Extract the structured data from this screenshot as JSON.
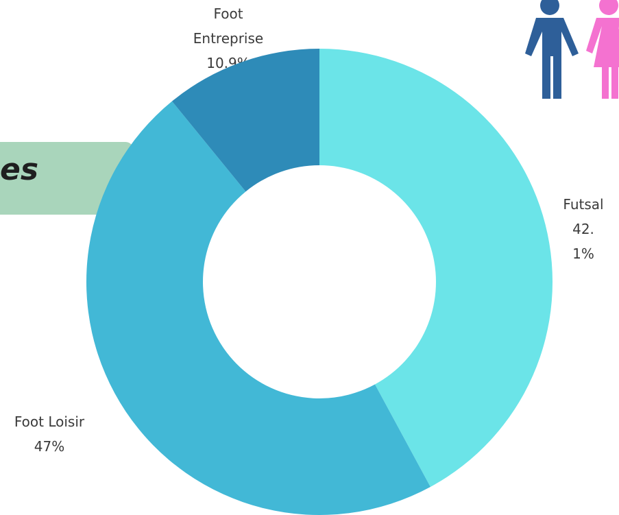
{
  "banner": {
    "text": "es"
  },
  "chart_data": {
    "type": "donut",
    "categories": [
      "Futsal",
      "Foot Loisir",
      "Foot Entreprise"
    ],
    "values": [
      42.1,
      47,
      10.9
    ],
    "value_labels": [
      "42.1%",
      "47%",
      "10.9%"
    ],
    "colors": [
      "#6be4e8",
      "#42b8d6",
      "#2e8bb8"
    ]
  }
}
